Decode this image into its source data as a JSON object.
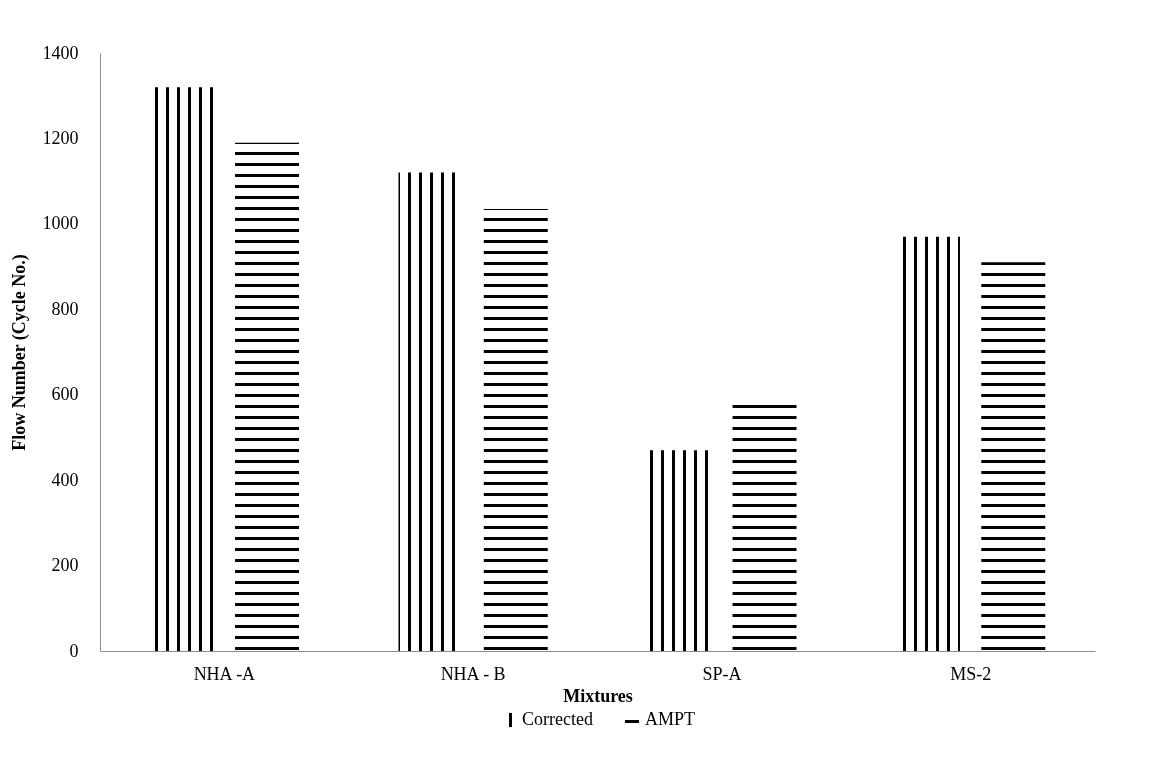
{
  "chart_data": {
    "type": "bar",
    "xlabel": "Mixtures",
    "ylabel": "Flow Number (Cycle No.)",
    "categories": [
      "NHA -A",
      "NHA - B",
      "SP-A",
      "MS-2"
    ],
    "series": [
      {
        "name": "Corrected",
        "color": "#000000",
        "values": [
          1320,
          1120,
          470,
          970
        ]
      },
      {
        "name": "AMPT",
        "color": "#000000",
        "values": [
          1190,
          1035,
          580,
          910
        ]
      }
    ],
    "ylim": [
      0,
      1400
    ],
    "yticks": [
      0,
      200,
      400,
      600,
      800,
      1000,
      1200,
      1400
    ],
    "grid": false,
    "legend": "bottom"
  }
}
